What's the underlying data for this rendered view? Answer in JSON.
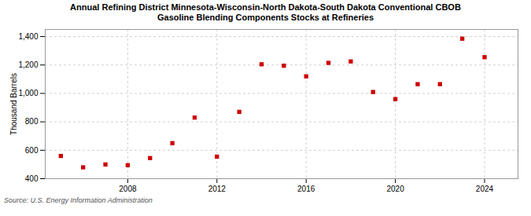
{
  "chart_data": {
    "type": "scatter",
    "title": "Annual Refining District Minnesota-Wisconsin-North Dakota-South Dakota Conventional CBOB\nGasoline Blending Components Stocks at Refineries",
    "ylabel": "Thousand Barrels",
    "source": "Source: U.S. Energy Information Administration",
    "x": [
      2005,
      2006,
      2007,
      2008,
      2009,
      2010,
      2011,
      2012,
      2013,
      2014,
      2015,
      2016,
      2017,
      2018,
      2019,
      2020,
      2021,
      2022,
      2023,
      2024
    ],
    "values": [
      560,
      480,
      500,
      495,
      545,
      650,
      830,
      555,
      870,
      1205,
      1195,
      1120,
      1215,
      1225,
      1010,
      960,
      1065,
      1065,
      1385,
      1255
    ],
    "color": "#cc0000",
    "marker": "square",
    "xlim": [
      2004.3,
      2025.5
    ],
    "ylim": [
      400,
      1450
    ],
    "xticks": [
      2008,
      2012,
      2016,
      2020,
      2024
    ],
    "yticks": [
      400,
      600,
      800,
      {
        "value": 1000,
        "label": "1,000"
      },
      {
        "value": 1200,
        "label": "1,200"
      },
      {
        "value": 1400,
        "label": "1,400"
      }
    ],
    "grid": true
  }
}
